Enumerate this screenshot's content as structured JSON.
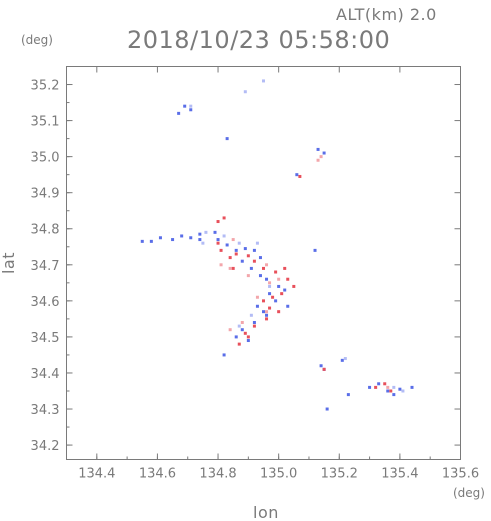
{
  "chart_data": {
    "type": "scatter",
    "title": "2018/10/23 05:58:00",
    "subtitle": "ALT(km) 2.0",
    "xlabel": "lon",
    "ylabel": "lat",
    "x_unit": "(deg)",
    "y_unit": "(deg)",
    "xlim": [
      134.3,
      135.6
    ],
    "ylim": [
      34.16,
      35.25
    ],
    "x_ticks": [
      134.4,
      134.6,
      134.8,
      135.0,
      135.2,
      135.4,
      135.6
    ],
    "x_tick_labels": [
      "134.4",
      "134.6",
      "134.8",
      "135.0",
      "135.2",
      "135.4",
      "135.6"
    ],
    "y_ticks": [
      34.2,
      34.3,
      34.4,
      34.5,
      34.6,
      34.7,
      34.8,
      34.9,
      35.0,
      35.1,
      35.2
    ],
    "y_tick_labels": [
      "34.2",
      "34.3",
      "34.4",
      "34.5",
      "34.6",
      "34.7",
      "34.8",
      "34.9",
      "35.0",
      "35.1",
      "35.2"
    ],
    "grid": false,
    "colors": {
      "positive": "#e8505b",
      "negative": "#5a6ee8",
      "axis": "#7a7a7a"
    },
    "series": [
      {
        "color": "#5a6ee8",
        "points": [
          [
            134.55,
            34.765
          ],
          [
            134.58,
            34.765
          ],
          [
            134.61,
            34.775
          ],
          [
            134.65,
            34.77
          ],
          [
            134.68,
            34.78
          ],
          [
            134.71,
            34.775
          ],
          [
            134.74,
            34.785
          ],
          [
            134.79,
            34.79
          ],
          [
            134.8,
            34.77
          ],
          [
            134.83,
            34.755
          ],
          [
            134.86,
            34.74
          ],
          [
            134.89,
            34.745
          ],
          [
            134.92,
            34.74
          ],
          [
            134.94,
            34.72
          ],
          [
            134.88,
            34.71
          ],
          [
            134.91,
            34.69
          ],
          [
            134.94,
            34.67
          ],
          [
            134.96,
            34.66
          ],
          [
            135.0,
            34.64
          ],
          [
            135.02,
            34.63
          ],
          [
            134.97,
            34.62
          ],
          [
            134.99,
            34.6
          ],
          [
            135.03,
            34.585
          ],
          [
            134.93,
            34.585
          ],
          [
            134.95,
            34.57
          ],
          [
            134.92,
            34.54
          ],
          [
            134.88,
            34.52
          ],
          [
            134.86,
            34.5
          ],
          [
            134.9,
            34.49
          ],
          [
            134.82,
            34.45
          ],
          [
            134.69,
            35.14
          ],
          [
            134.71,
            35.13
          ],
          [
            134.67,
            35.12
          ],
          [
            134.83,
            35.05
          ],
          [
            135.14,
            34.42
          ],
          [
            135.15,
            34.41
          ],
          [
            135.21,
            34.435
          ],
          [
            135.3,
            34.36
          ],
          [
            135.33,
            34.37
          ],
          [
            135.36,
            34.35
          ],
          [
            135.38,
            34.34
          ],
          [
            135.4,
            34.355
          ],
          [
            135.44,
            34.36
          ],
          [
            135.23,
            34.34
          ],
          [
            135.16,
            34.3
          ],
          [
            135.13,
            35.02
          ],
          [
            135.15,
            35.01
          ],
          [
            135.06,
            34.95
          ],
          [
            135.12,
            34.74
          ],
          [
            134.96,
            34.56
          ],
          [
            134.74,
            34.77
          ]
        ]
      },
      {
        "color": "#e8505b",
        "points": [
          [
            134.8,
            34.76
          ],
          [
            134.81,
            34.74
          ],
          [
            134.84,
            34.72
          ],
          [
            134.86,
            34.73
          ],
          [
            134.9,
            34.725
          ],
          [
            134.92,
            34.71
          ],
          [
            134.95,
            34.69
          ],
          [
            134.99,
            34.68
          ],
          [
            135.03,
            34.66
          ],
          [
            135.05,
            34.64
          ],
          [
            135.01,
            34.62
          ],
          [
            134.98,
            34.61
          ],
          [
            134.95,
            34.6
          ],
          [
            134.97,
            34.58
          ],
          [
            134.92,
            34.53
          ],
          [
            134.89,
            34.51
          ],
          [
            134.87,
            34.48
          ],
          [
            134.9,
            34.5
          ],
          [
            134.96,
            34.55
          ],
          [
            135.0,
            34.57
          ],
          [
            134.82,
            34.83
          ],
          [
            134.8,
            34.82
          ],
          [
            135.07,
            34.945
          ],
          [
            135.15,
            34.41
          ],
          [
            135.32,
            34.36
          ],
          [
            135.35,
            34.37
          ],
          [
            135.37,
            34.35
          ],
          [
            135.02,
            34.69
          ],
          [
            134.85,
            34.69
          ]
        ]
      },
      {
        "color": "#f3a6ab",
        "points": [
          [
            134.81,
            34.7
          ],
          [
            134.84,
            34.69
          ],
          [
            134.9,
            34.67
          ],
          [
            134.96,
            34.7
          ],
          [
            135.0,
            34.66
          ],
          [
            134.93,
            34.61
          ],
          [
            134.96,
            34.57
          ],
          [
            134.88,
            34.54
          ],
          [
            134.84,
            34.52
          ],
          [
            135.14,
            35.0
          ],
          [
            135.13,
            34.99
          ],
          [
            135.36,
            34.36
          ],
          [
            134.85,
            34.77
          ],
          [
            134.97,
            34.65
          ]
        ]
      },
      {
        "color": "#b3bcf5",
        "points": [
          [
            134.75,
            34.76
          ],
          [
            134.76,
            34.79
          ],
          [
            134.82,
            34.78
          ],
          [
            134.87,
            34.76
          ],
          [
            134.93,
            34.76
          ],
          [
            134.97,
            34.64
          ],
          [
            134.91,
            34.56
          ],
          [
            134.87,
            34.53
          ],
          [
            135.38,
            34.36
          ],
          [
            135.41,
            34.35
          ],
          [
            134.71,
            35.14
          ],
          [
            134.95,
            35.21
          ],
          [
            134.89,
            35.18
          ],
          [
            135.22,
            34.44
          ]
        ]
      }
    ]
  }
}
